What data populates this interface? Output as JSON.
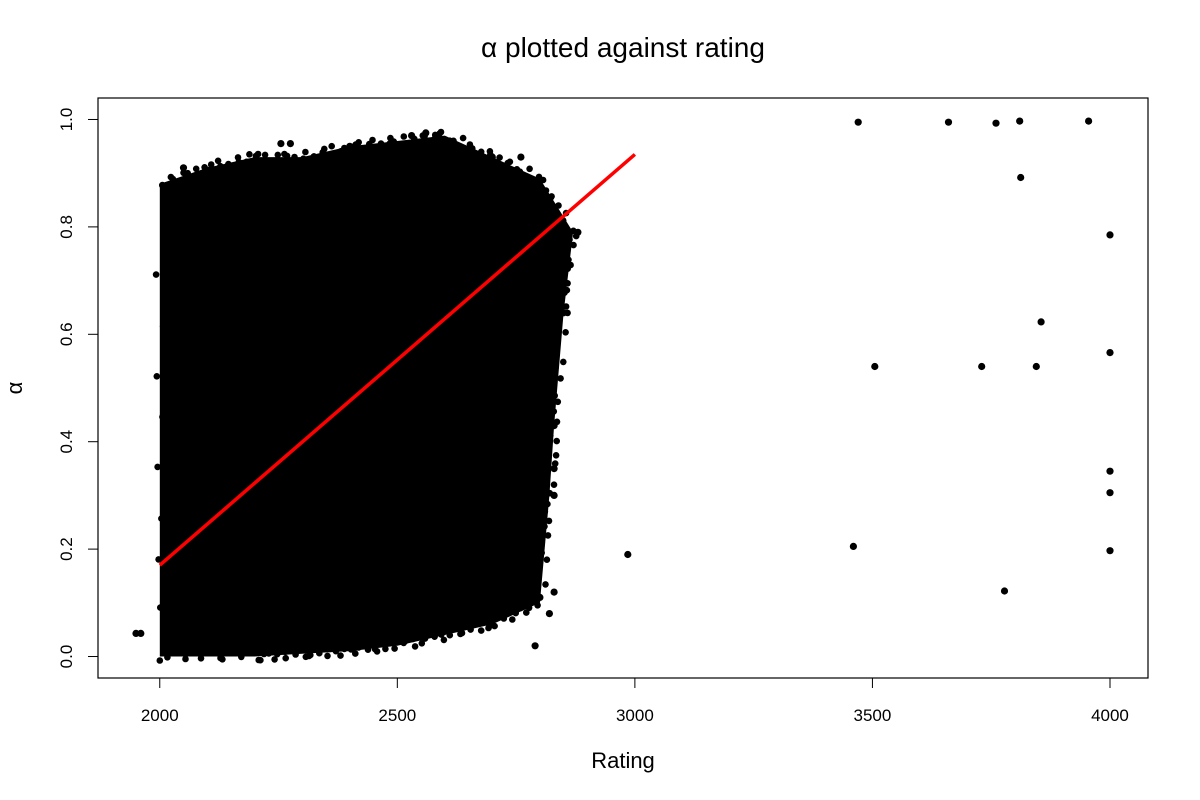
{
  "chart_data": {
    "type": "scatter",
    "title": "α plotted against rating",
    "xlabel": "Rating",
    "ylabel": "α",
    "xlim": [
      1870,
      4080
    ],
    "ylim": [
      -0.04,
      1.04
    ],
    "x_ticks": [
      2000,
      2500,
      3000,
      3500,
      4000
    ],
    "y_ticks": [
      0.0,
      0.2,
      0.4,
      0.6,
      0.8,
      1.0
    ],
    "x_tick_labels": [
      "2000",
      "2500",
      "3000",
      "3500",
      "4000"
    ],
    "y_tick_labels": [
      "0.0",
      "0.2",
      "0.4",
      "0.6",
      "0.8",
      "1.0"
    ],
    "grid": false,
    "point_color": "#000000",
    "dense_cluster_outline": [
      [
        2000,
        0.0
      ],
      [
        2000,
        0.88
      ],
      [
        2100,
        0.91
      ],
      [
        2200,
        0.93
      ],
      [
        2300,
        0.93
      ],
      [
        2400,
        0.95
      ],
      [
        2500,
        0.96
      ],
      [
        2600,
        0.97
      ],
      [
        2700,
        0.93
      ],
      [
        2800,
        0.89
      ],
      [
        2870,
        0.79
      ],
      [
        2850,
        0.64
      ],
      [
        2830,
        0.43
      ],
      [
        2820,
        0.3
      ],
      [
        2800,
        0.1
      ],
      [
        2700,
        0.06
      ],
      [
        2600,
        0.04
      ],
      [
        2500,
        0.02
      ],
      [
        2400,
        0.01
      ],
      [
        2300,
        0.005
      ],
      [
        2200,
        0.0
      ]
    ],
    "points": [
      {
        "x": 1950,
        "y": 0.043
      },
      {
        "x": 1960,
        "y": 0.043
      },
      {
        "x": 2050,
        "y": 0.91
      },
      {
        "x": 2255,
        "y": 0.955
      },
      {
        "x": 2275,
        "y": 0.955
      },
      {
        "x": 2400,
        "y": 0.95
      },
      {
        "x": 2530,
        "y": 0.97
      },
      {
        "x": 2560,
        "y": 0.975
      },
      {
        "x": 2580,
        "y": 0.965
      },
      {
        "x": 2610,
        "y": 0.96
      },
      {
        "x": 2640,
        "y": 0.93
      },
      {
        "x": 2700,
        "y": 0.93
      },
      {
        "x": 2760,
        "y": 0.93
      },
      {
        "x": 2880,
        "y": 0.79
      },
      {
        "x": 2850,
        "y": 0.64
      },
      {
        "x": 2830,
        "y": 0.43
      },
      {
        "x": 2790,
        "y": 0.43
      },
      {
        "x": 2800,
        "y": 0.45
      },
      {
        "x": 2830,
        "y": 0.35
      },
      {
        "x": 2830,
        "y": 0.3
      },
      {
        "x": 2810,
        "y": 0.27
      },
      {
        "x": 2800,
        "y": 0.11
      },
      {
        "x": 2830,
        "y": 0.12
      },
      {
        "x": 2820,
        "y": 0.08
      },
      {
        "x": 2790,
        "y": 0.02
      },
      {
        "x": 2760,
        "y": 0.53
      },
      {
        "x": 2700,
        "y": 0.66
      },
      {
        "x": 2790,
        "y": 0.7
      },
      {
        "x": 2985,
        "y": 0.19
      },
      {
        "x": 3460,
        "y": 0.205
      },
      {
        "x": 3470,
        "y": 0.995
      },
      {
        "x": 3505,
        "y": 0.54
      },
      {
        "x": 3660,
        "y": 0.995
      },
      {
        "x": 3730,
        "y": 0.54
      },
      {
        "x": 3760,
        "y": 0.993
      },
      {
        "x": 3778,
        "y": 0.122
      },
      {
        "x": 3810,
        "y": 0.997
      },
      {
        "x": 3812,
        "y": 0.892
      },
      {
        "x": 3845,
        "y": 0.54
      },
      {
        "x": 3855,
        "y": 0.623
      },
      {
        "x": 3955,
        "y": 0.997
      },
      {
        "x": 4000,
        "y": 0.785
      },
      {
        "x": 4000,
        "y": 0.566
      },
      {
        "x": 4000,
        "y": 0.345
      },
      {
        "x": 4000,
        "y": 0.305
      },
      {
        "x": 4000,
        "y": 0.197
      }
    ],
    "regression_line": {
      "color": "#ff0000",
      "points": [
        [
          2000,
          0.17
        ],
        [
          3000,
          0.935
        ]
      ]
    }
  }
}
